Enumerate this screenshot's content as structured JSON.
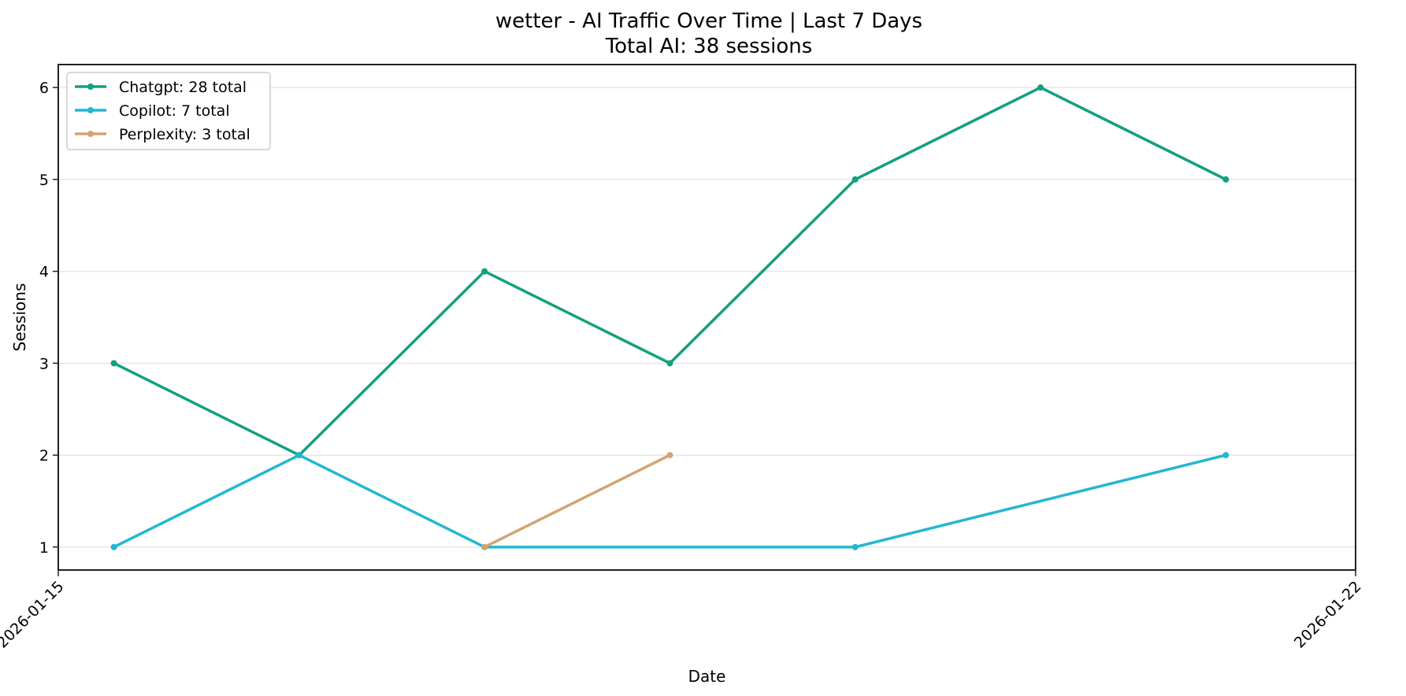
{
  "chart_data": {
    "type": "line",
    "title": "wetter - AI Traffic Over Time | Last 7 Days",
    "subtitle": "Total AI: 38 sessions",
    "xlabel": "Date",
    "ylabel": "Sessions",
    "ylim": [
      0.75,
      6.25
    ],
    "yticks": [
      1,
      2,
      3,
      4,
      5,
      6
    ],
    "xticks": [
      "2026-01-15",
      "2026-01-22"
    ],
    "grid": "y",
    "legend_position": "upper left",
    "series": [
      {
        "name": "Chatgpt",
        "label": "Chatgpt: 28 total",
        "color": "#13a07e",
        "x": [
          0.3,
          1.3,
          2.3,
          3.3,
          4.3,
          5.3,
          6.3
        ],
        "values": [
          3,
          2,
          4,
          3,
          5,
          6,
          5
        ]
      },
      {
        "name": "Copilot",
        "label": "Copilot: 7 total",
        "color": "#22b8cf",
        "x": [
          0.3,
          1.3,
          2.3,
          4.3,
          6.3
        ],
        "values": [
          1,
          2,
          1,
          1,
          2
        ]
      },
      {
        "name": "Perplexity",
        "label": "Perplexity: 3 total",
        "color": "#d4a373",
        "x": [
          2.3,
          3.3
        ],
        "values": [
          1,
          2
        ]
      }
    ]
  }
}
